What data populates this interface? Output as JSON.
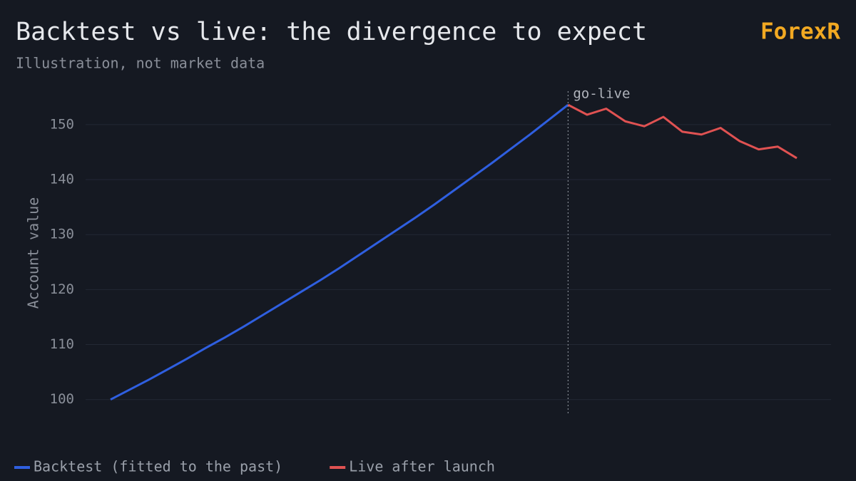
{
  "chart_data": {
    "type": "line",
    "title": "Backtest vs live: the divergence to expect",
    "subtitle": "Illustration, not market data",
    "brand": "ForexR",
    "y_label": "Account value",
    "annotation": "go-live",
    "categories": [
      null,
      null,
      null,
      null,
      null,
      null,
      null,
      null,
      null,
      null,
      null,
      null,
      null,
      null,
      null,
      null,
      null,
      null,
      null,
      null,
      null,
      null,
      null,
      null,
      null,
      null,
      null,
      null,
      null,
      null,
      null,
      null,
      null,
      null,
      null,
      null,
      null
    ],
    "series": [
      {
        "name": "Backtest (fitted to the past)",
        "color": "#2f5fe0",
        "values": [
          100,
          101.8,
          103.6,
          105.5,
          107.4,
          109.4,
          111.3,
          113.3,
          115.4,
          117.5,
          119.6,
          121.7,
          123.9,
          126.2,
          128.5,
          130.8,
          133.1,
          135.5,
          138.0,
          140.5,
          143.0,
          145.6,
          148.2,
          150.9,
          153.6,
          null,
          null,
          null,
          null,
          null,
          null,
          null,
          null,
          null,
          null,
          null,
          null
        ]
      },
      {
        "name": "Live after launch",
        "color": "#e05252",
        "values": [
          null,
          null,
          null,
          null,
          null,
          null,
          null,
          null,
          null,
          null,
          null,
          null,
          null,
          null,
          null,
          null,
          null,
          null,
          null,
          null,
          null,
          null,
          null,
          null,
          153.6,
          151.8,
          152.9,
          150.6,
          149.7,
          151.4,
          148.7,
          148.2,
          149.4,
          147.0,
          145.5,
          146.0,
          143.9
        ]
      }
    ],
    "ylim": [
      97.5,
      157.5
    ],
    "yticks": [
      100,
      110,
      120,
      130,
      140,
      150
    ],
    "grid": true
  }
}
